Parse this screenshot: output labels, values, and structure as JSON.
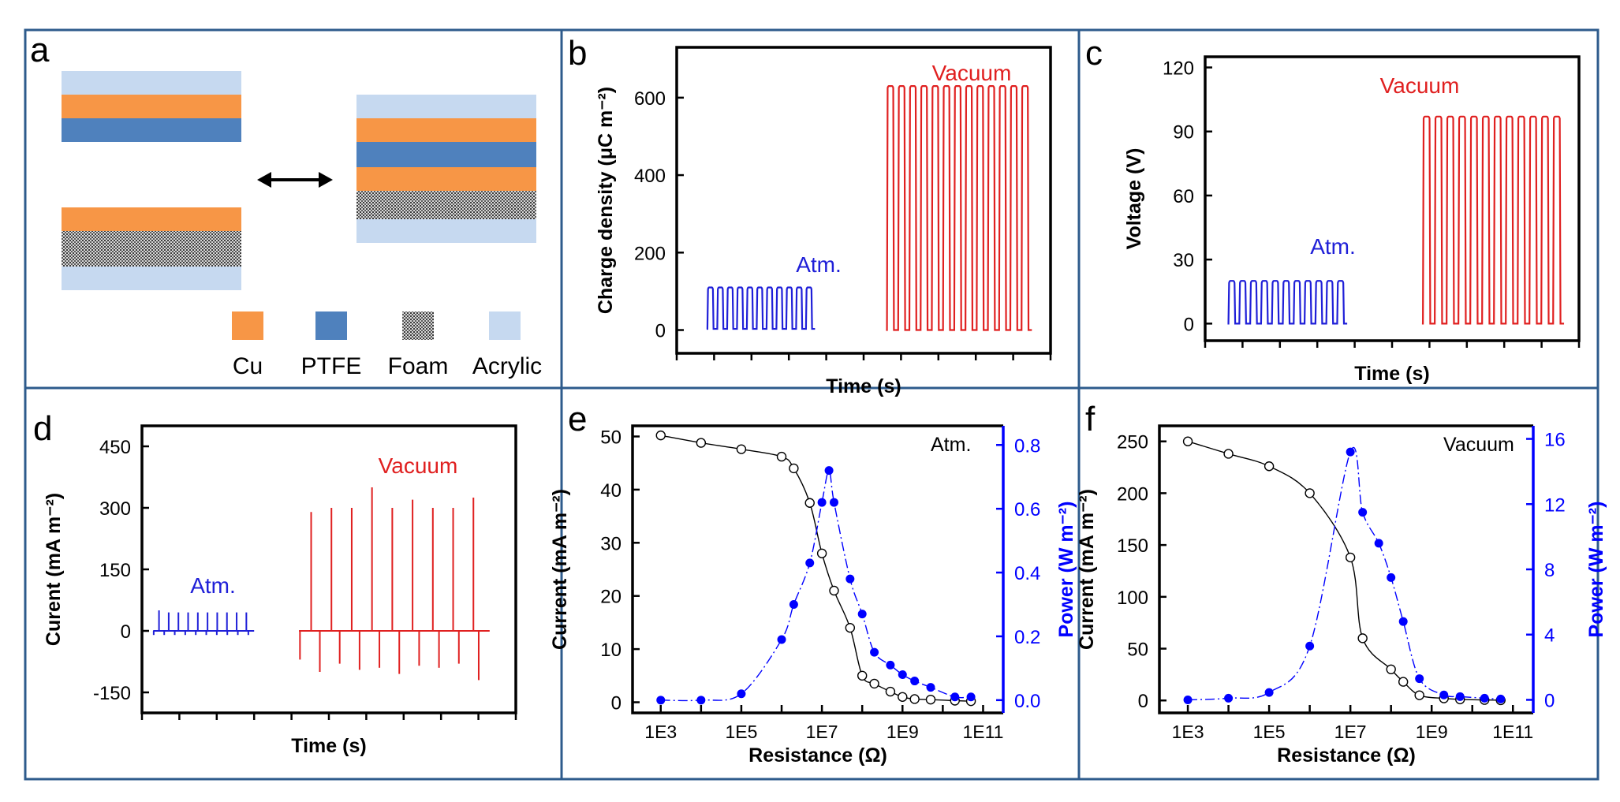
{
  "panel_letters": [
    "a",
    "b",
    "c",
    "d",
    "e",
    "f"
  ],
  "colors": {
    "frame": "#2e5b8c",
    "cu": "#f79646",
    "ptfe": "#4f81bd",
    "acrylic": "#c6d9f0",
    "foam_dark": "#444444",
    "atm": "#1f1fd8",
    "vacuum": "#e02020",
    "black_series": "#000000",
    "power_blue": "#0000ff"
  },
  "panel_a": {
    "legend": [
      {
        "key": "cu",
        "label": "Cu"
      },
      {
        "key": "ptfe",
        "label": "PTFE"
      },
      {
        "key": "foam",
        "label": "Foam"
      },
      {
        "key": "acrylic",
        "label": "Acrylic"
      }
    ],
    "arrow": "double-headed-arrow"
  },
  "chart_data": [
    {
      "panel": "b",
      "type": "line",
      "title": "",
      "xlabel": "Time (s)",
      "ylabel": "Charge density (μC m⁻²)",
      "ylim": [
        -60,
        730
      ],
      "yticks": [
        0,
        200,
        400,
        600
      ],
      "xticks_labeled": false,
      "series": [
        {
          "name": "Atm.",
          "color": "#1f1fd8",
          "cycles": 11,
          "low": 3,
          "high": 110
        },
        {
          "name": "Vacuum",
          "color": "#e02020",
          "cycles": 13,
          "low": 0,
          "high": 630
        }
      ]
    },
    {
      "panel": "c",
      "type": "line",
      "title": "",
      "xlabel": "Time (s)",
      "ylabel": "Voltage (V)",
      "ylim": [
        -8,
        125
      ],
      "yticks": [
        0,
        30,
        60,
        90,
        120
      ],
      "xticks_labeled": false,
      "series": [
        {
          "name": "Atm.",
          "color": "#1f1fd8",
          "cycles": 11,
          "low": 0,
          "high": 20
        },
        {
          "name": "Vacuum",
          "color": "#e02020",
          "cycles": 12,
          "low": 0,
          "high": 97
        }
      ]
    },
    {
      "panel": "d",
      "type": "line",
      "title": "",
      "xlabel": "Time (s)",
      "ylabel": "Curent (mA m⁻²)",
      "ylim": [
        -200,
        500
      ],
      "yticks": [
        -150,
        0,
        150,
        300,
        450
      ],
      "xticks_labeled": false,
      "series": [
        {
          "name": "Atm.",
          "color": "#1f1fd8",
          "pos_peaks": [
            50,
            45,
            45,
            45,
            45,
            45,
            45,
            45,
            45,
            45
          ],
          "neg_peaks": [
            -10,
            -10,
            -10,
            -10,
            -10,
            -10,
            -10,
            -10,
            -10,
            -10
          ]
        },
        {
          "name": "Vacuum",
          "color": "#e02020",
          "pos_peaks": [
            290,
            300,
            300,
            350,
            300,
            320,
            300,
            300,
            325
          ],
          "neg_peaks": [
            -70,
            -100,
            -80,
            -95,
            -90,
            -105,
            -85,
            -90,
            -80,
            -120
          ]
        }
      ]
    },
    {
      "panel": "e",
      "type": "scatter",
      "title": "",
      "annotation": "Atm.",
      "xlabel": "Resistance (Ω)",
      "ylabel": "Current (mA m⁻²)",
      "y2label": "Power (W m⁻²)",
      "x_scale": "log",
      "xlim_log10": [
        2.3,
        11.5
      ],
      "xtick_labels": [
        "1E3",
        "1E5",
        "1E7",
        "1E9",
        "1E11"
      ],
      "ylim": [
        -2,
        52
      ],
      "yticks": [
        0,
        10,
        20,
        30,
        40,
        50
      ],
      "y2lim": [
        -0.04,
        0.86
      ],
      "y2ticks": [
        0.0,
        0.2,
        0.4,
        0.6,
        0.8
      ],
      "y2tick_labels": [
        "0.0",
        "0.2",
        "0.4",
        "0.6",
        "0.8"
      ],
      "series": [
        {
          "name": "Current",
          "axis": "left",
          "marker": "open-circle",
          "color": "#000000",
          "x": [
            1000,
            10000,
            100000,
            1000000,
            2000000,
            5000000,
            10000000,
            20000000,
            50000000,
            100000000,
            200000000,
            500000000,
            1000000000,
            2000000000,
            5000000000,
            20000000000,
            50000000000
          ],
          "y": [
            50.2,
            48.8,
            47.6,
            46.2,
            44,
            37.5,
            28,
            21,
            14,
            5,
            3.5,
            2,
            1,
            0.6,
            0.5,
            0.3,
            0.2
          ]
        },
        {
          "name": "Power",
          "axis": "right",
          "marker": "filled-circle",
          "color": "#0000ff",
          "x": [
            1000,
            10000,
            100000,
            1000000,
            2000000,
            5000000,
            10000000,
            15000000,
            20000000,
            50000000,
            100000000,
            200000000,
            500000000,
            1000000000,
            2000000000,
            5000000000,
            20000000000,
            50000000000
          ],
          "y": [
            0.0,
            0.0,
            0.02,
            0.19,
            0.3,
            0.43,
            0.62,
            0.72,
            0.62,
            0.38,
            0.27,
            0.15,
            0.11,
            0.08,
            0.06,
            0.04,
            0.01,
            0.01
          ]
        }
      ]
    },
    {
      "panel": "f",
      "type": "scatter",
      "title": "",
      "annotation": "Vacuum",
      "xlabel": "Resistance (Ω)",
      "ylabel": "Current (mA m⁻²)",
      "y2label": "Power (W m⁻²)",
      "x_scale": "log",
      "xlim_log10": [
        2.3,
        11.5
      ],
      "xtick_labels": [
        "1E3",
        "1E5",
        "1E7",
        "1E9",
        "1E11"
      ],
      "ylim": [
        -12,
        265
      ],
      "yticks": [
        0,
        50,
        100,
        150,
        200,
        250
      ],
      "y2lim": [
        -0.8,
        16.8
      ],
      "y2ticks": [
        0,
        4,
        8,
        12,
        16
      ],
      "y2tick_labels": [
        "0",
        "4",
        "8",
        "12",
        "16"
      ],
      "series": [
        {
          "name": "Current",
          "axis": "left",
          "marker": "open-circle",
          "color": "#000000",
          "x": [
            1000,
            10000,
            100000,
            1000000,
            10000000,
            20000000,
            100000000,
            200000000,
            500000000,
            2000000000,
            5000000000,
            20000000000,
            50000000000
          ],
          "y": [
            250,
            238,
            226,
            200,
            138,
            60,
            30,
            18,
            5,
            2,
            1,
            0.5,
            0.2
          ]
        },
        {
          "name": "Power",
          "axis": "right",
          "marker": "filled-circle",
          "color": "#0000ff",
          "x": [
            1000,
            10000,
            100000,
            1000000,
            10000000,
            20000000,
            50000000,
            100000000,
            200000000,
            500000000,
            2000000000,
            5000000000,
            20000000000,
            50000000000
          ],
          "y": [
            0.0,
            0.1,
            0.45,
            3.3,
            15.2,
            11.5,
            9.6,
            7.5,
            4.8,
            1.3,
            0.3,
            0.2,
            0.1,
            0.05
          ]
        }
      ]
    }
  ]
}
